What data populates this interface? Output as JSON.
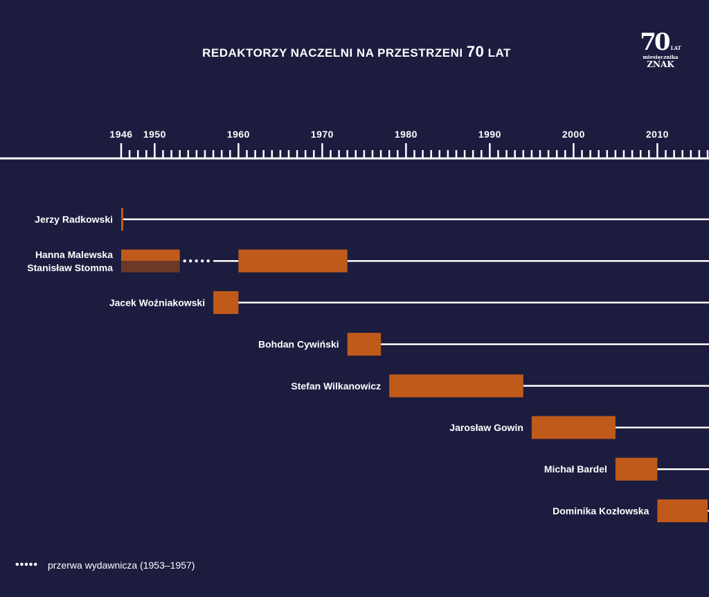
{
  "chart_data": {
    "type": "timeline",
    "title_prefix": "REDAKTORZY NACZELNI NA PRZESTRZENI",
    "title_number": "70",
    "title_suffix": "LAT",
    "xlim": [
      1946,
      2016
    ],
    "tick_labels": [
      "1946",
      "1950",
      "1960",
      "1970",
      "1980",
      "1990",
      "2000",
      "2010"
    ],
    "colors": {
      "background": "#1b1c3e",
      "bar": "#c05a1a",
      "bar_secondary": "#6b3a27",
      "line": "#ffffff"
    },
    "rows": [
      {
        "names": [
          "Jerzy Radkowski"
        ],
        "segments": [
          {
            "start": 1946,
            "end": 1946.25
          }
        ]
      },
      {
        "names": [
          "Hanna Malewska",
          "Stanisław Stomma"
        ],
        "segments": [
          {
            "start": 1946,
            "end": 1953,
            "split": true
          },
          {
            "start": 1960,
            "end": 1973
          }
        ],
        "gap": [
          1953,
          1957
        ]
      },
      {
        "names": [
          "Jacek Woźniakowski"
        ],
        "segments": [
          {
            "start": 1957,
            "end": 1960
          }
        ]
      },
      {
        "names": [
          "Bohdan Cywiński"
        ],
        "segments": [
          {
            "start": 1973,
            "end": 1977
          }
        ]
      },
      {
        "names": [
          "Stefan Wilkanowicz"
        ],
        "segments": [
          {
            "start": 1978,
            "end": 1994
          }
        ]
      },
      {
        "names": [
          "Jarosław Gowin"
        ],
        "segments": [
          {
            "start": 1995,
            "end": 2005
          }
        ]
      },
      {
        "names": [
          "Michał Bardel"
        ],
        "segments": [
          {
            "start": 2005,
            "end": 2010
          }
        ]
      },
      {
        "names": [
          "Dominika Kozłowska"
        ],
        "segments": [
          {
            "start": 2010,
            "end": 2016
          }
        ]
      }
    ],
    "legend": "przerwa wydawnicza (1953–1957)"
  },
  "logo": {
    "number": "70",
    "lat": "LAT",
    "sub": "miesięcznika",
    "brand": "ZNAK"
  }
}
